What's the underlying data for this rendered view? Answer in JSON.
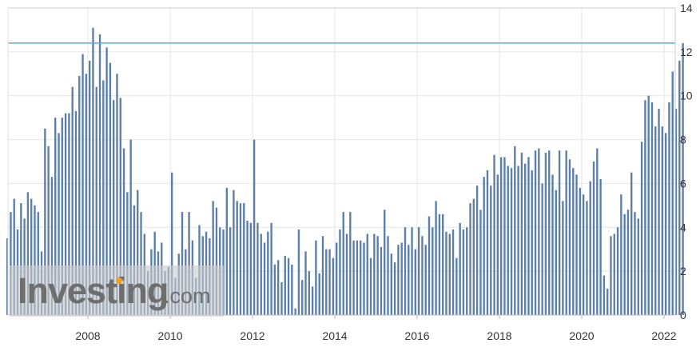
{
  "chart_data": {
    "type": "bar",
    "title": "",
    "xlabel": "",
    "ylabel": "",
    "ylim": [
      0,
      14
    ],
    "yticks": [
      "0",
      "2",
      "4",
      "6",
      "8",
      "10",
      "12",
      "14"
    ],
    "xticks": [
      "2008",
      "2010",
      "2012",
      "2014",
      "2016",
      "2018",
      "2020",
      "2022"
    ],
    "start_year": 2006,
    "reference_line": 12.4,
    "grid": true,
    "y_axis_position": "right",
    "colors": {
      "bar": "#5b7fa8",
      "reference_line": "#5aa8e6",
      "grid": "#e6e6e6"
    },
    "values": [
      3.5,
      4.7,
      5.3,
      3.9,
      5.1,
      4.4,
      5.6,
      5.3,
      5.0,
      4.7,
      2.9,
      8.5,
      7.7,
      6.3,
      9.0,
      8.3,
      9.0,
      9.2,
      9.2,
      10.4,
      9.3,
      10.9,
      11.9,
      11.0,
      11.6,
      13.1,
      10.4,
      12.8,
      10.7,
      12.2,
      11.5,
      9.8,
      11.0,
      9.9,
      7.6,
      5.6,
      8.0,
      5.0,
      5.7,
      4.7,
      3.7,
      2.0,
      3.0,
      3.8,
      2.9,
      3.3,
      2.0,
      2.2,
      6.5,
      1.7,
      2.8,
      4.7,
      3.0,
      4.7,
      3.4,
      1.7,
      4.1,
      3.6,
      3.8,
      3.5,
      5.2,
      4.9,
      4.0,
      3.9,
      5.8,
      4.0,
      5.7,
      5.2,
      5.1,
      5.1,
      4.3,
      4.2,
      8.0,
      4.2,
      3.7,
      3.3,
      3.8,
      4.2,
      2.3,
      2.5,
      1.5,
      2.7,
      2.6,
      2.3,
      0.3,
      3.9,
      1.6,
      2.9,
      2.0,
      1.3,
      3.4,
      1.9,
      3.6,
      3.0,
      3.0,
      2.6,
      3.3,
      3.9,
      4.7,
      3.7,
      4.7,
      3.4,
      3.4,
      3.4,
      3.3,
      3.7,
      2.6,
      3.7,
      3.6,
      3.1,
      4.8,
      3.6,
      2.8,
      2.4,
      3.2,
      3.3,
      4.0,
      3.2,
      4.0,
      3.0,
      4.0,
      3.6,
      3.2,
      4.5,
      4.0,
      5.2,
      4.6,
      4.6,
      3.8,
      3.7,
      3.9,
      2.6,
      4.2,
      3.9,
      4.0,
      5.1,
      5.3,
      5.9,
      4.8,
      6.3,
      6.6,
      5.9,
      7.3,
      6.4,
      7.2,
      7.2,
      6.8,
      6.7,
      7.7,
      6.8,
      7.4,
      6.9,
      7.2,
      6.6,
      7.5,
      7.6,
      6.0,
      7.4,
      7.5,
      6.4,
      5.7,
      7.5,
      5.2,
      7.5,
      7.1,
      6.7,
      6.4,
      5.8,
      5.5,
      5.2,
      6.1,
      7.0,
      7.6,
      6.2,
      1.8,
      1.2,
      3.6,
      3.7,
      4.0,
      5.5,
      4.6,
      4.8,
      6.5,
      4.7,
      4.4,
      7.9,
      9.8,
      10.0,
      9.7,
      8.6,
      9.4,
      8.6,
      8.3,
      9.7,
      11.1,
      9.4,
      11.6,
      12.4
    ]
  }
}
